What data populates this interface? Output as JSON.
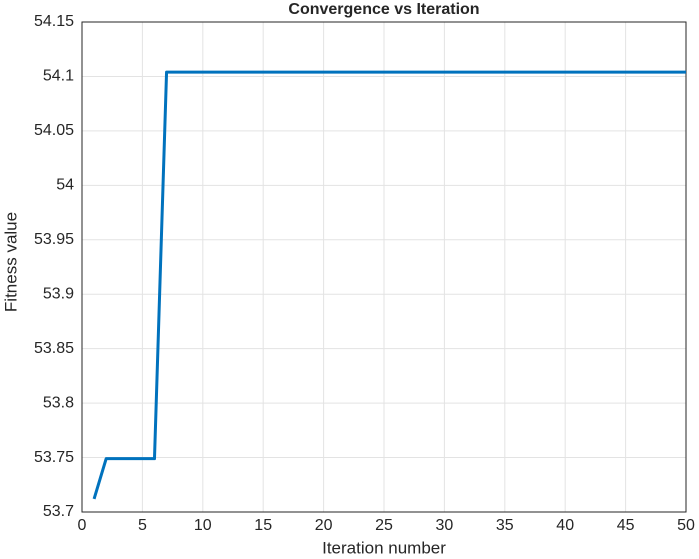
{
  "chart_data": {
    "type": "line",
    "title": "Convergence vs Iteration",
    "x_label": "Iteration number",
    "y_label": "Fitness value",
    "x": [
      1,
      2,
      3,
      4,
      5,
      6,
      7,
      8,
      9,
      10,
      11,
      12,
      13,
      14,
      15,
      16,
      17,
      18,
      19,
      20,
      21,
      22,
      23,
      24,
      25,
      26,
      27,
      28,
      29,
      30,
      31,
      32,
      33,
      34,
      35,
      36,
      37,
      38,
      39,
      40,
      41,
      42,
      43,
      44,
      45,
      46,
      47,
      48,
      49,
      50
    ],
    "series": [
      {
        "name": "Fitness",
        "color": "#0072bd",
        "values": [
          53.712,
          53.749,
          53.749,
          53.749,
          53.749,
          53.749,
          54.104,
          54.104,
          54.104,
          54.104,
          54.104,
          54.104,
          54.104,
          54.104,
          54.104,
          54.104,
          54.104,
          54.104,
          54.104,
          54.104,
          54.104,
          54.104,
          54.104,
          54.104,
          54.104,
          54.104,
          54.104,
          54.104,
          54.104,
          54.104,
          54.104,
          54.104,
          54.104,
          54.104,
          54.104,
          54.104,
          54.104,
          54.104,
          54.104,
          54.104,
          54.104,
          54.104,
          54.104,
          54.104,
          54.104,
          54.104,
          54.104,
          54.104,
          54.104,
          54.104
        ]
      }
    ],
    "xlim": [
      0,
      50
    ],
    "xticks": [
      0,
      5,
      10,
      15,
      20,
      25,
      30,
      35,
      40,
      45,
      50
    ],
    "ylim": [
      53.7,
      54.15
    ],
    "yticks": [
      53.7,
      53.75,
      53.8,
      53.85,
      53.9,
      53.95,
      54,
      54.05,
      54.1,
      54.15
    ],
    "grid": true
  }
}
